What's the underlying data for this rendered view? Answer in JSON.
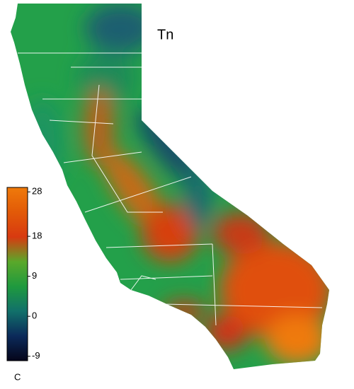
{
  "map": {
    "title": "Tn",
    "colorbar": {
      "unit": "C",
      "lim": [
        -10,
        29
      ],
      "ticks": [
        28,
        18,
        9,
        0,
        -9
      ],
      "colors": [
        "#05051a",
        "#0b2a5a",
        "#11706a",
        "#1f9a3e",
        "#5aa82a",
        "#d83a10",
        "#e25a08",
        "#ef7a0a"
      ]
    }
  }
}
